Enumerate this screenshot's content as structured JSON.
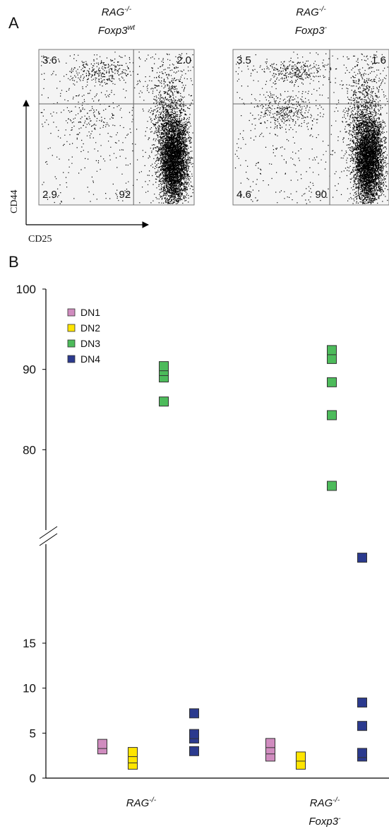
{
  "panel_a": {
    "label": "A",
    "y_label": "CD44",
    "x_label": "CD25",
    "plots": [
      {
        "title": [
          {
            "text": "RAG",
            "sup": "-/-"
          },
          {
            "text": "Foxp3",
            "sup": "wt"
          }
        ],
        "quadrants": {
          "upper_left": 3.6,
          "upper_right": {
            "value": 2.0,
            "label": "2.0"
          },
          "lower_left": 2.9,
          "lower_right": 92
        }
      },
      {
        "title": [
          {
            "text": "RAG",
            "sup": "-/-"
          },
          {
            "text": "Foxp3",
            "sup": "-"
          }
        ],
        "quadrants": {
          "upper_left": 3.5,
          "upper_right": 1.6,
          "lower_left": 4.6,
          "lower_right": 90
        }
      }
    ]
  },
  "chart_data": {
    "type": "strip",
    "panel_label": "B",
    "categories": [
      [
        {
          "text": "RAG",
          "sup": "-/-"
        }
      ],
      [
        {
          "text": "RAG",
          "sup": "-/-"
        },
        {
          "text": "Foxp3",
          "sup": "-"
        }
      ]
    ],
    "series": [
      {
        "name": "DN1",
        "color": "#d08cbf",
        "values": [
          [
            3.2,
            3.8
          ],
          [
            2.4,
            3.2,
            3.9
          ]
        ]
      },
      {
        "name": "DN2",
        "color": "#ffe500",
        "values": [
          [
            1.5,
            2.2,
            2.9
          ],
          [
            1.5,
            2.4
          ]
        ]
      },
      {
        "name": "DN3",
        "color": "#4dbb5b",
        "values": [
          [
            86,
            89,
            89.8,
            90.4
          ],
          [
            75.5,
            84.3,
            88.4,
            91.3,
            92.4
          ]
        ]
      },
      {
        "name": "DN4",
        "color": "#2b3a8e",
        "values": [
          [
            3.0,
            4.4,
            4.9,
            7.2
          ],
          [
            2.4,
            2.8,
            5.8,
            8.4,
            24.5
          ]
        ]
      }
    ],
    "y_segments": [
      {
        "ylim": [
          0,
          26
        ],
        "yticks": [
          0,
          5,
          10,
          15
        ]
      },
      {
        "ylim": [
          70,
          100
        ],
        "yticks": [
          80,
          90,
          100
        ]
      }
    ],
    "legend": "upper-left"
  }
}
